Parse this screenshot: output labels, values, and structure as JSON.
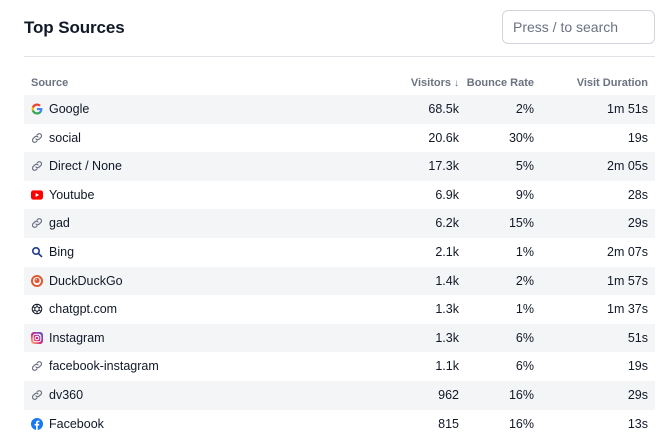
{
  "header": {
    "title": "Top Sources",
    "search_placeholder": "Press / to search"
  },
  "table": {
    "columns": {
      "source": "Source",
      "visitors": "Visitors",
      "bounce_rate": "Bounce Rate",
      "visit_duration": "Visit Duration"
    },
    "sort_icon": "arrow-down-icon",
    "rows": [
      {
        "name": "Google",
        "icon": "google-icon",
        "visitors": "68.5k",
        "bounce_rate": "2%",
        "visit_duration": "1m 51s"
      },
      {
        "name": "social",
        "icon": "link-icon",
        "visitors": "20.6k",
        "bounce_rate": "30%",
        "visit_duration": "19s"
      },
      {
        "name": "Direct / None",
        "icon": "link-icon",
        "visitors": "17.3k",
        "bounce_rate": "5%",
        "visit_duration": "2m 05s"
      },
      {
        "name": "Youtube",
        "icon": "youtube-icon",
        "visitors": "6.9k",
        "bounce_rate": "9%",
        "visit_duration": "28s"
      },
      {
        "name": "gad",
        "icon": "link-icon",
        "visitors": "6.2k",
        "bounce_rate": "15%",
        "visit_duration": "29s"
      },
      {
        "name": "Bing",
        "icon": "bing-search-icon",
        "visitors": "2.1k",
        "bounce_rate": "1%",
        "visit_duration": "2m 07s"
      },
      {
        "name": "DuckDuckGo",
        "icon": "duckduckgo-icon",
        "visitors": "1.4k",
        "bounce_rate": "2%",
        "visit_duration": "1m 57s"
      },
      {
        "name": "chatgpt.com",
        "icon": "chatgpt-icon",
        "visitors": "1.3k",
        "bounce_rate": "1%",
        "visit_duration": "1m 37s"
      },
      {
        "name": "Instagram",
        "icon": "instagram-icon",
        "visitors": "1.3k",
        "bounce_rate": "6%",
        "visit_duration": "51s"
      },
      {
        "name": "facebook-instagram",
        "icon": "link-icon",
        "visitors": "1.1k",
        "bounce_rate": "6%",
        "visit_duration": "19s"
      },
      {
        "name": "dv360",
        "icon": "link-icon",
        "visitors": "962",
        "bounce_rate": "16%",
        "visit_duration": "29s"
      },
      {
        "name": "Facebook",
        "icon": "facebook-icon",
        "visitors": "815",
        "bounce_rate": "16%",
        "visit_duration": "13s"
      }
    ]
  }
}
